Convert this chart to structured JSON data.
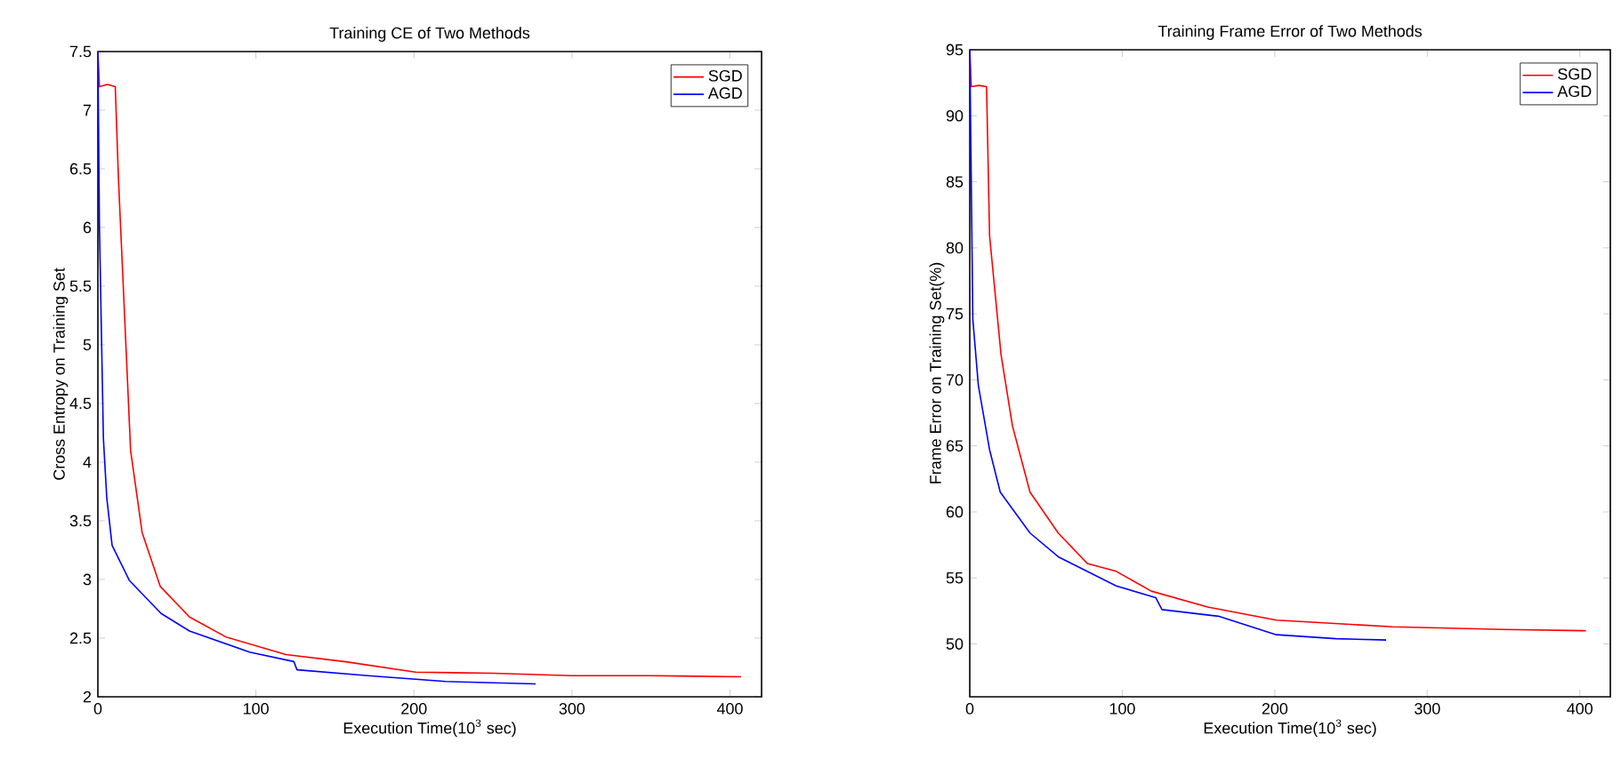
{
  "chart_data": [
    {
      "type": "line",
      "title": "Training CE of Two Methods",
      "xlabel": "Execution Time(10$^{3}$ sec)",
      "ylabel": "Cross Entropy on Training Set",
      "xlim": [
        0,
        420
      ],
      "ylim": [
        2,
        7.5
      ],
      "xticks": [
        0,
        100,
        200,
        300,
        400
      ],
      "yticks": [
        2,
        2.5,
        3,
        3.5,
        4,
        4.5,
        5,
        5.5,
        6,
        6.5,
        7,
        7.5
      ],
      "legend": "top right",
      "grid": false,
      "series": [
        {
          "name": "SGD",
          "color": "#ff0000",
          "x": [
            0,
            1,
            6,
            11,
            13,
            20.7,
            28,
            39.5,
            58,
            81,
            119,
            156,
            201,
            250,
            300,
            350,
            407
          ],
          "values": [
            7.5,
            7.2,
            7.22,
            7.2,
            6.42,
            4.1,
            3.4,
            2.94,
            2.68,
            2.51,
            2.36,
            2.3,
            2.21,
            2.2,
            2.18,
            2.18,
            2.17
          ]
        },
        {
          "name": "AGD",
          "color": "#0000ff",
          "x": [
            0,
            1,
            3.5,
            5.6,
            9,
            20,
            40,
            58,
            96,
            124,
            126,
            171,
            220,
            277
          ],
          "values": [
            7.5,
            6.0,
            4.2,
            3.7,
            3.29,
            2.99,
            2.71,
            2.56,
            2.38,
            2.3,
            2.23,
            2.18,
            2.13,
            2.11
          ]
        }
      ]
    },
    {
      "type": "line",
      "title": "Training Frame Error of Two Methods",
      "xlabel": "Execution Time(10$^{3}$ sec)",
      "ylabel": "Frame Error on Training Set(%)",
      "xlim": [
        0,
        420
      ],
      "ylim": [
        46,
        95
      ],
      "xticks": [
        0,
        100,
        200,
        300,
        400
      ],
      "yticks": [
        50,
        55,
        60,
        65,
        70,
        75,
        80,
        85,
        90,
        95
      ],
      "legend": "top right",
      "grid": false,
      "series": [
        {
          "name": "SGD",
          "color": "#ff0000",
          "x": [
            0,
            1,
            6,
            11,
            13,
            20.5,
            28,
            39.5,
            58,
            77,
            96,
            119,
            156,
            201,
            277,
            350,
            404
          ],
          "values": [
            95,
            92.2,
            92.3,
            92.2,
            80.9,
            71.9,
            66.5,
            61.5,
            58.4,
            56.1,
            55.5,
            54.0,
            52.8,
            51.8,
            51.3,
            51.1,
            51.0
          ]
        },
        {
          "name": "AGD",
          "color": "#0000ff",
          "x": [
            0,
            2,
            5.6,
            13,
            20,
            39.5,
            58,
            96,
            122,
            126,
            163,
            201,
            240,
            273
          ],
          "values": [
            95,
            74.6,
            69.6,
            64.7,
            61.5,
            58.4,
            56.6,
            54.4,
            53.5,
            52.6,
            52.1,
            50.7,
            50.4,
            50.3
          ]
        }
      ]
    }
  ]
}
